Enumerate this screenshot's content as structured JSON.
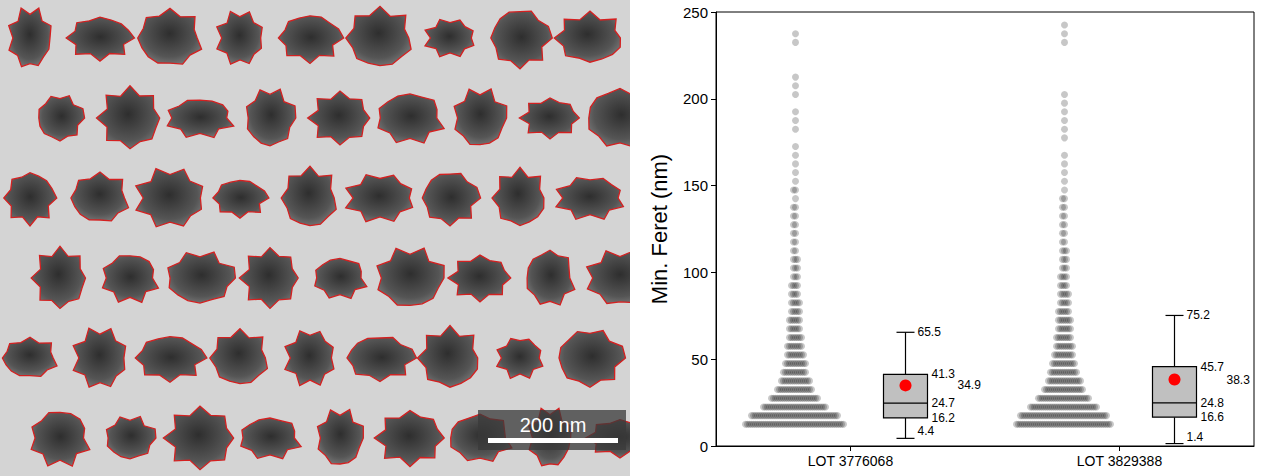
{
  "chart_data": {
    "type": "box",
    "y_label": "Min. Feret (nm)",
    "categories": [
      "LOT 3776068",
      "LOT 3829388"
    ],
    "ylim": [
      0,
      250
    ],
    "yticks": [
      0,
      50,
      100,
      150,
      200,
      250
    ],
    "grid": false,
    "data_labels": true,
    "color": "#c0c0c0",
    "boxes": [
      {
        "min": 4.4,
        "q1": 16.2,
        "median": 24.7,
        "q3": 41.3,
        "max": 65.5,
        "mean": 34.9
      },
      {
        "min": 1.4,
        "q1": 16.6,
        "median": 24.8,
        "q3": 45.7,
        "max": 75.2,
        "mean": 38.3
      }
    ],
    "points": {
      "bins": [
        10,
        15,
        20,
        25,
        30,
        35,
        40,
        45,
        50,
        55,
        60,
        65,
        70,
        75,
        80,
        85,
        90,
        95,
        100,
        105,
        110,
        115,
        120,
        125,
        130,
        135,
        140,
        145,
        150,
        155,
        160,
        165,
        170,
        175,
        180,
        185,
        190,
        195,
        200,
        205,
        210,
        215,
        220,
        225,
        230,
        235,
        240,
        245,
        250
      ],
      "counts": [
        [
          50,
          44,
          32,
          24,
          18,
          15,
          12,
          11,
          9,
          8,
          7,
          6,
          6,
          5,
          5,
          4,
          4,
          3,
          3,
          3,
          2,
          2,
          2,
          2,
          2,
          2,
          1,
          2,
          1,
          1,
          1,
          1,
          1,
          0,
          1,
          1,
          1,
          0,
          1,
          1,
          1,
          0,
          0,
          0,
          1,
          1,
          0,
          0
        ],
        [
          48,
          44,
          34,
          26,
          20,
          17,
          14,
          12,
          10,
          9,
          8,
          7,
          7,
          6,
          5,
          5,
          4,
          4,
          3,
          3,
          3,
          2,
          2,
          2,
          2,
          2,
          2,
          1,
          1,
          1,
          1,
          1,
          0,
          1,
          1,
          1,
          1,
          1,
          1,
          0,
          0,
          0,
          0,
          0,
          1,
          1,
          1,
          0
        ]
      ]
    }
  },
  "micrograph": {
    "scale_bar": "200 nm"
  }
}
